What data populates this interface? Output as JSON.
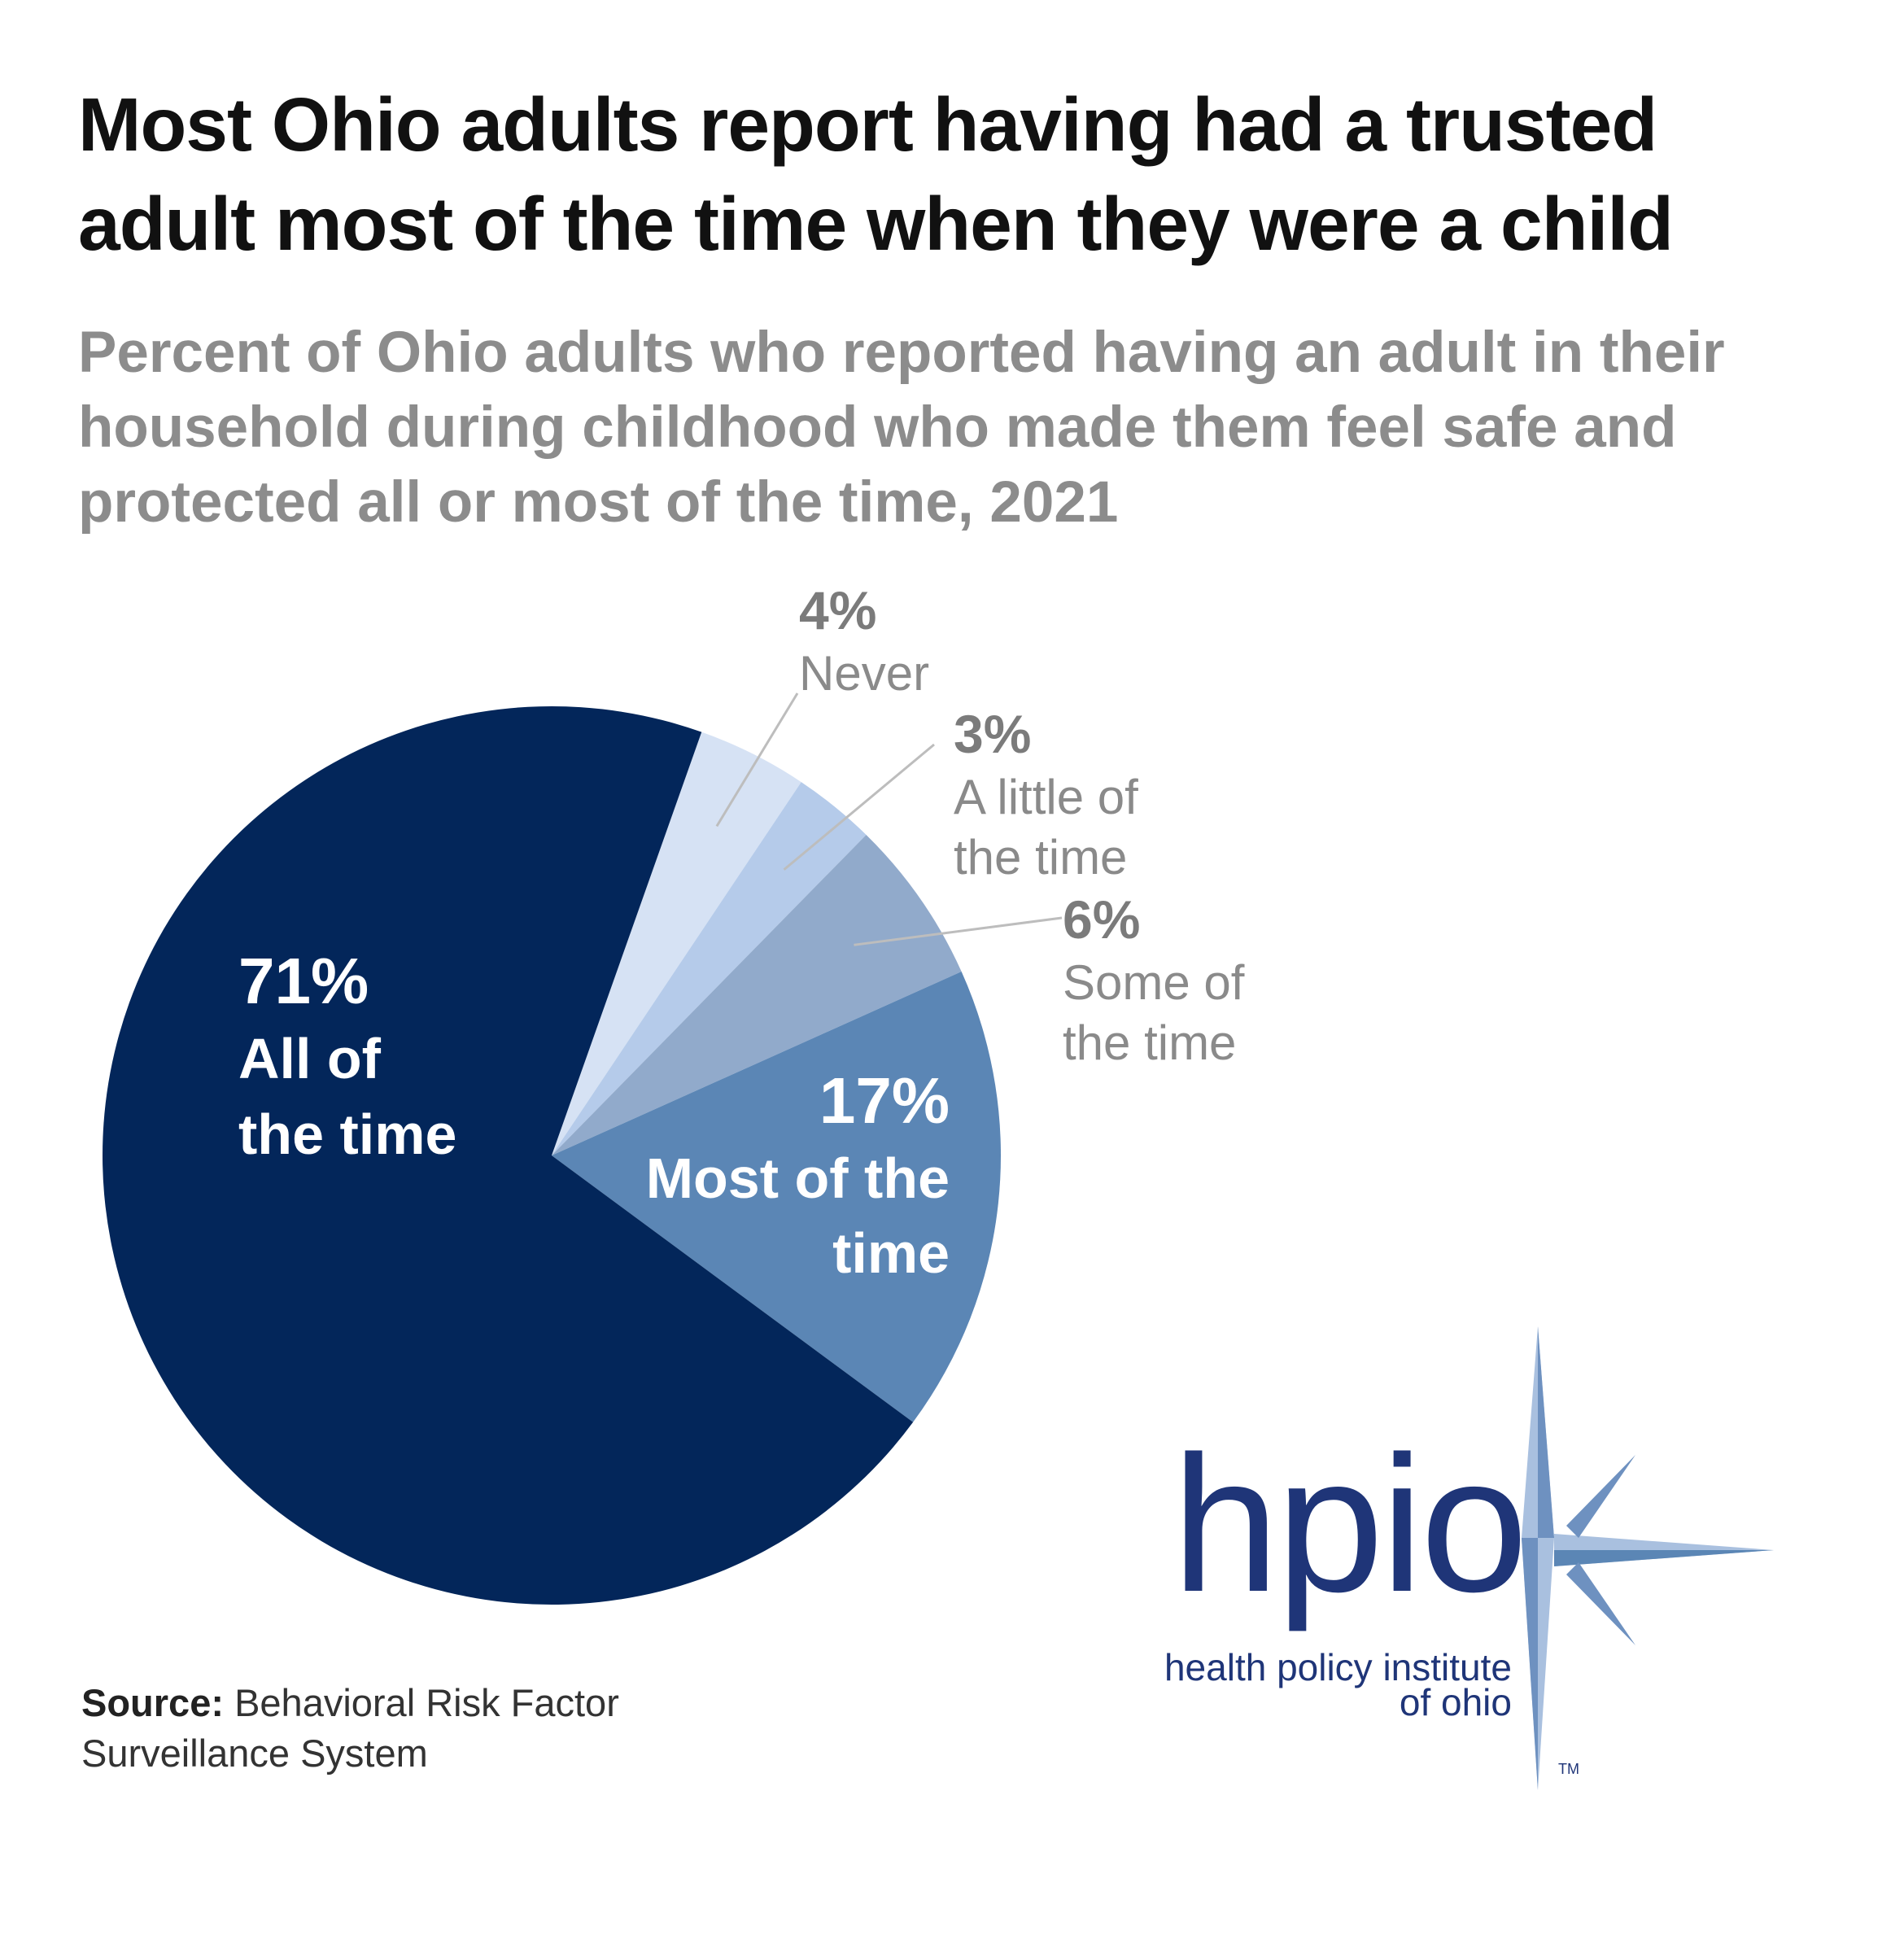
{
  "title": "Most Ohio adults report having had a trusted adult most of the time when they were a child",
  "subtitle": "Percent of Ohio adults who reported having an adult in their household during childhood who made them feel safe and protected all or most of the time, 2021",
  "chart_data": {
    "type": "pie",
    "title": "Most Ohio adults report having had a trusted adult most of the time when they were a child",
    "subtitle": "Percent of Ohio adults who reported having an adult in their household during childhood who made them feel safe and protected all or most of the time, 2021",
    "unit": "%",
    "slices": [
      {
        "label": "All of the time",
        "value": 71,
        "value_text": "71%",
        "color": "#03265a"
      },
      {
        "label": "Most of the time",
        "value": 17,
        "value_text": "17%",
        "color": "#5b86b5"
      },
      {
        "label": "Some of the time",
        "value": 6,
        "value_text": "6%",
        "color": "#91aacb"
      },
      {
        "label": "A little of the time",
        "value": 3,
        "value_text": "3%",
        "color": "#b5cbea"
      },
      {
        "label": "Never",
        "value": 4,
        "value_text": "4%",
        "color": "#d6e2f4"
      }
    ]
  },
  "source": {
    "label": "Source:",
    "text": "Behavioral Risk Factor Surveillance System"
  },
  "logo": {
    "wordmark": "hpio",
    "name_line1": "health policy institute",
    "name_line2": "of ohio",
    "trademark": "TM",
    "colors": {
      "dark": "#1f3578",
      "mid": "#5b86b5",
      "light": "#a9c0df"
    }
  }
}
